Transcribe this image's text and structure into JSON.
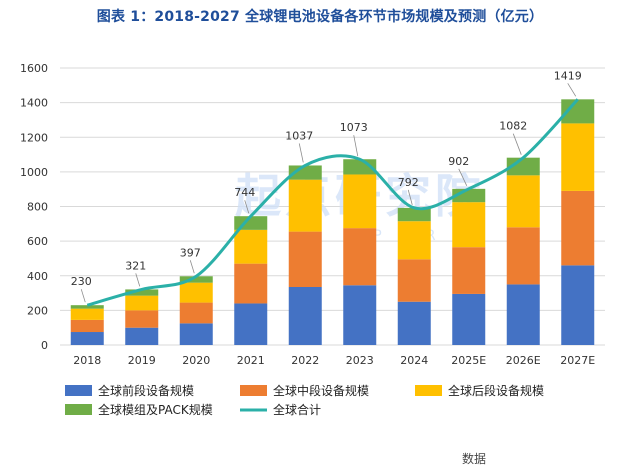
{
  "title": "图表 1：2018-2027 全球锂电池设备各环节市场规模及预测（亿元）",
  "watermark": {
    "text": "起点研究院",
    "sub": "SPIR"
  },
  "footer": "数据",
  "chart_data": {
    "type": "bar",
    "stacked": true,
    "categories": [
      "2018",
      "2019",
      "2020",
      "2021",
      "2022",
      "2023",
      "2024",
      "2025E",
      "2026E",
      "2027E"
    ],
    "ylim": [
      0,
      1600
    ],
    "yticks": [
      0,
      200,
      400,
      600,
      800,
      1000,
      1200,
      1400,
      1600
    ],
    "grid": true,
    "legend_position": "bottom",
    "series": [
      {
        "name": "全球前段设备规模",
        "color": "#4472c4",
        "values": [
          75,
          100,
          125,
          240,
          335,
          345,
          250,
          295,
          350,
          460
        ]
      },
      {
        "name": "全球中段设备规模",
        "color": "#ed7d31",
        "values": [
          70,
          100,
          120,
          230,
          320,
          330,
          245,
          270,
          330,
          430
        ]
      },
      {
        "name": "全球后段设备规模",
        "color": "#ffc000",
        "values": [
          65,
          85,
          115,
          195,
          300,
          310,
          220,
          260,
          300,
          390
        ]
      },
      {
        "name": "全球模组及PACK规模",
        "color": "#70ad47",
        "values": [
          20,
          36,
          37,
          79,
          82,
          88,
          77,
          77,
          102,
          139
        ]
      }
    ],
    "line": {
      "name": "全球合计",
      "color": "#2bb0a8",
      "values": [
        230,
        321,
        397,
        744,
        1037,
        1073,
        792,
        902,
        1082,
        1419
      ]
    }
  }
}
